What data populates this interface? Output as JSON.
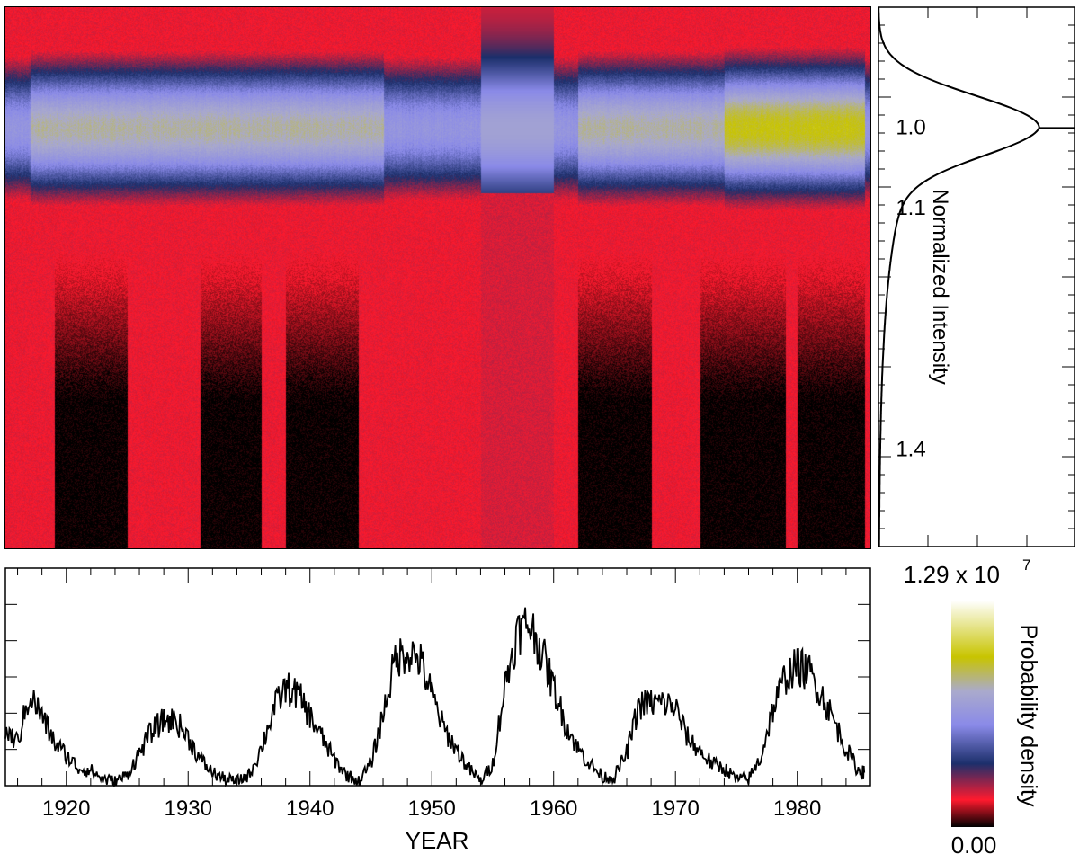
{
  "chart_data": [
    {
      "type": "heatmap",
      "description_axis": "time vs normalized intensity, probability density",
      "x_range": [
        1915,
        1986
      ],
      "y_range": [
        0.85,
        1.52
      ],
      "y_scale_note": "axis shared with right-hand profile; intensity increases downward",
      "features": {
        "core_band_intensity": 1.0,
        "band_blue_halfwidth": 0.09,
        "yellow_core_years": [
          [
            1917,
            1946
          ],
          [
            1962,
            1985.5
          ]
        ],
        "strong_yellow_years": [
          [
            1974,
            1985.5
          ]
        ],
        "red_tail_dominant_years": [
          [
            1954,
            1960
          ]
        ],
        "dark_lower_years": [
          [
            1919,
            1925
          ],
          [
            1931,
            1936
          ],
          [
            1938,
            1944
          ],
          [
            1962,
            1968
          ],
          [
            1972,
            1979
          ],
          [
            1980,
            1985.5
          ]
        ]
      }
    },
    {
      "type": "line",
      "title": "",
      "ylabel": "Normalized Intensity",
      "yticks": [
        "1.0",
        "1.1",
        "1.4"
      ],
      "ytick_values": [
        1.0,
        1.1,
        1.4
      ],
      "x_range": [
        0,
        12900000.0
      ],
      "y_range": [
        0.85,
        1.52
      ],
      "profile": {
        "peak_intensity": 1.0,
        "peak_density_fraction": 0.82,
        "shape": "sharp peak at 1.0 with long tail toward higher intensity"
      }
    },
    {
      "type": "line",
      "xlabel": "YEAR",
      "xticks": [
        "1920",
        "1930",
        "1940",
        "1950",
        "1960",
        "1970",
        "1980"
      ],
      "xtick_values": [
        1920,
        1930,
        1940,
        1950,
        1960,
        1970,
        1980
      ],
      "x_range": [
        1915,
        1986
      ],
      "y_range": [
        0,
        1
      ],
      "series": [
        {
          "name": "",
          "x": [
            1915,
            1916,
            1917,
            1918,
            1919,
            1920,
            1921,
            1922,
            1923,
            1924,
            1925,
            1926,
            1927,
            1928,
            1929,
            1930,
            1931,
            1932,
            1933,
            1934,
            1935,
            1936,
            1937,
            1938,
            1939,
            1940,
            1941,
            1942,
            1943,
            1944,
            1945,
            1946,
            1947,
            1948,
            1949,
            1950,
            1951,
            1952,
            1953,
            1954,
            1955,
            1956,
            1957,
            1958,
            1959,
            1960,
            1961,
            1962,
            1963,
            1964,
            1965,
            1966,
            1967,
            1968,
            1969,
            1970,
            1971,
            1972,
            1973,
            1974,
            1975,
            1976,
            1977,
            1978,
            1979,
            1980,
            1981,
            1982,
            1983,
            1984,
            1985,
            1985.5
          ],
          "values": [
            0.25,
            0.2,
            0.42,
            0.32,
            0.2,
            0.14,
            0.08,
            0.07,
            0.03,
            0.02,
            0.05,
            0.15,
            0.25,
            0.3,
            0.3,
            0.22,
            0.12,
            0.06,
            0.03,
            0.02,
            0.05,
            0.17,
            0.35,
            0.45,
            0.42,
            0.32,
            0.22,
            0.12,
            0.05,
            0.02,
            0.1,
            0.33,
            0.58,
            0.62,
            0.58,
            0.42,
            0.26,
            0.17,
            0.08,
            0.02,
            0.1,
            0.46,
            0.7,
            0.75,
            0.62,
            0.45,
            0.28,
            0.17,
            0.1,
            0.04,
            0.04,
            0.15,
            0.37,
            0.38,
            0.38,
            0.36,
            0.22,
            0.16,
            0.1,
            0.08,
            0.03,
            0.03,
            0.13,
            0.35,
            0.5,
            0.55,
            0.52,
            0.42,
            0.3,
            0.17,
            0.07,
            0.06
          ]
        }
      ]
    },
    {
      "type": "heatmap",
      "title": "Probability density",
      "max_label": "1.29 x 10",
      "max_exponent": "7",
      "min_label": "0.00",
      "colors": [
        "#000000",
        "#ff1a2e",
        "#1c2f6b",
        "#8a8ae8",
        "#aaaacc",
        "#c8c400",
        "#ffffff"
      ],
      "stops": [
        0.0,
        0.12,
        0.28,
        0.45,
        0.6,
        0.75,
        1.0
      ]
    }
  ],
  "colors": {
    "axis": "#000000",
    "line": "#000000"
  }
}
